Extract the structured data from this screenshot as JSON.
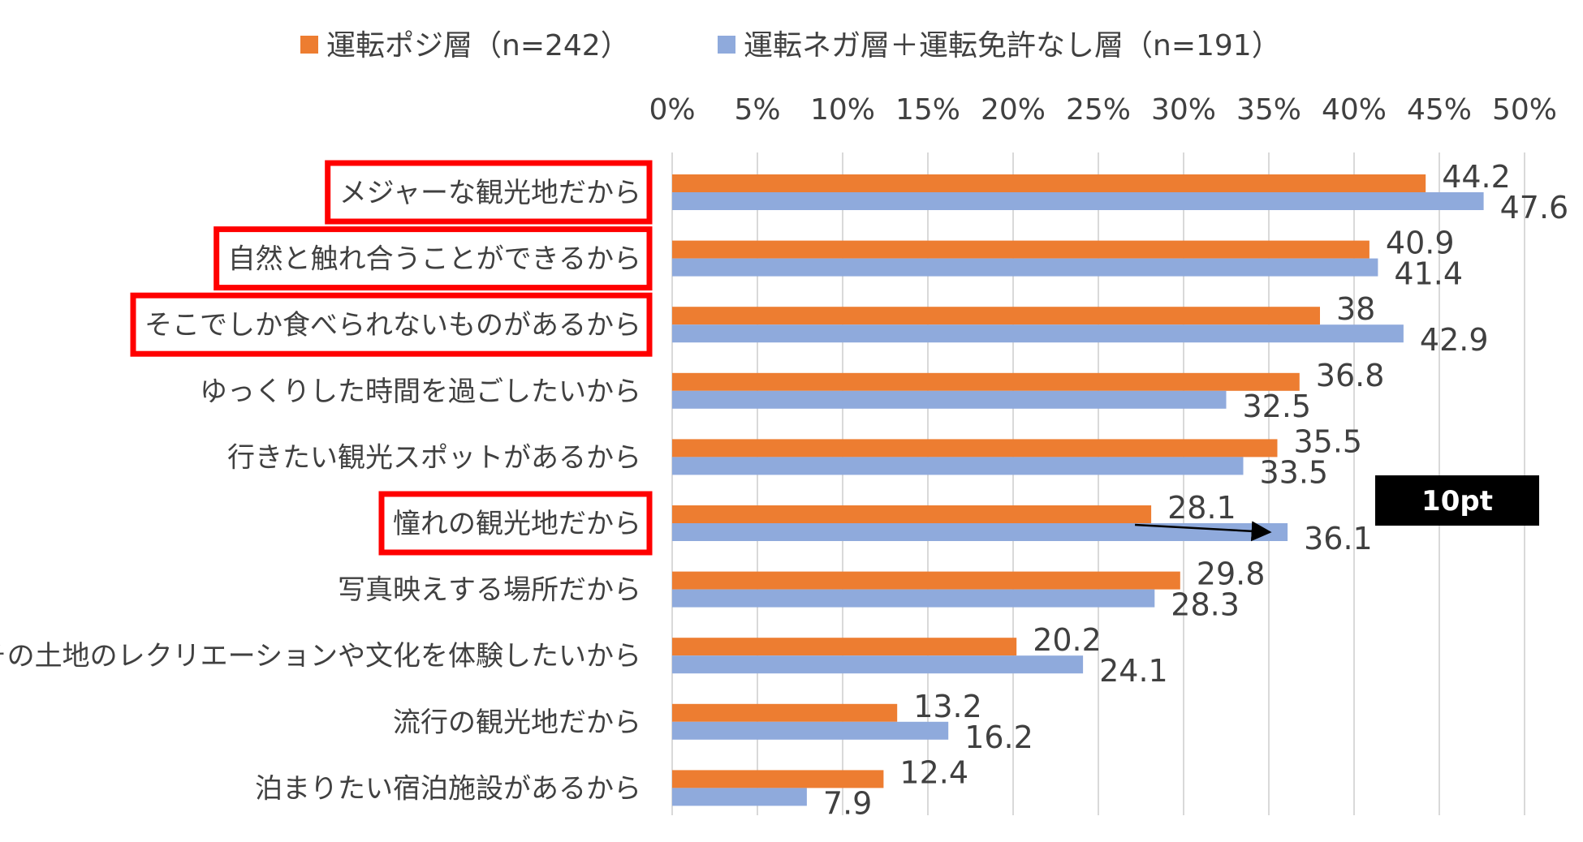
{
  "chart_data": {
    "type": "bar",
    "orientation": "horizontal",
    "categories": [
      "メジャーな観光地だから",
      "自然と触れ合うことができるから",
      "そこでしか食べられないものがあるから",
      "ゆっくりした時間を過ごしたいから",
      "行きたい観光スポットがあるから",
      "憧れの観光地だから",
      "写真映えする場所だから",
      "その土地のレクリエーションや文化を体験したいから",
      "流行の観光地だから",
      "泊まりたい宿泊施設があるから"
    ],
    "series": [
      {
        "name": "運転ポジ層（n=242）",
        "color": "#ED7D31",
        "values": [
          44.2,
          40.9,
          38,
          36.8,
          35.5,
          28.1,
          29.8,
          20.2,
          13.2,
          12.4
        ],
        "labels": [
          "44.2",
          "40.9",
          "38",
          "36.8",
          "35.5",
          "28.1",
          "29.8",
          "20.2",
          "13.2",
          "12.4"
        ]
      },
      {
        "name": "運転ネガ層＋運転免許なし層（n=191）",
        "color": "#8FAADC",
        "values": [
          47.6,
          41.4,
          42.9,
          32.5,
          33.5,
          36.1,
          28.3,
          24.1,
          16.2,
          7.9
        ],
        "labels": [
          "47.6",
          "41.4",
          "42.9",
          "32.5",
          "33.5",
          "36.1",
          "28.3",
          "24.1",
          "16.2",
          "7.9"
        ]
      }
    ],
    "xlim": [
      0,
      50
    ],
    "xticks": [
      0,
      5,
      10,
      15,
      20,
      25,
      30,
      35,
      40,
      45,
      50
    ],
    "xtick_labels": [
      "0%",
      "5%",
      "10%",
      "15%",
      "20%",
      "25%",
      "30%",
      "35%",
      "40%",
      "45%",
      "50%"
    ],
    "axis_position": "top",
    "grid": true,
    "legend_position": "top",
    "highlighted_categories": [
      0,
      1,
      2,
      5
    ],
    "highlight_color": "#FF0000",
    "annotation": {
      "text": "10pt",
      "category_index": 5,
      "from_value": 28.1,
      "to_value": 36.1
    }
  }
}
